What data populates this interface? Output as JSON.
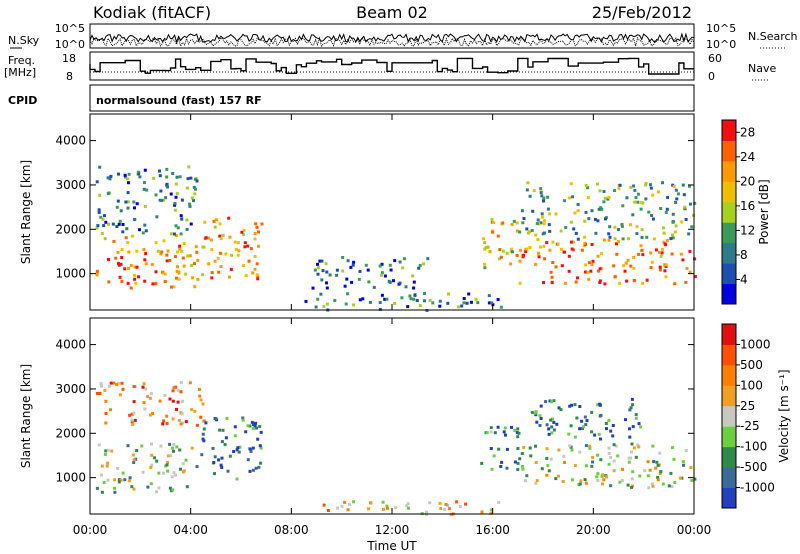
{
  "header": {
    "station": "Kodiak (fitACF)",
    "beam": "Beam 02",
    "date": "25/Feb/2012"
  },
  "panels_top": {
    "nsky_label": "N.Sky",
    "nsky_ticks": [
      "10^5",
      "10^0"
    ],
    "nsearch_label": "N.Search",
    "nsearch_ticks": [
      "10^5",
      "10^0"
    ],
    "freq_label": "Freq.",
    "freq_unit": "[MHz]",
    "freq_ticks": [
      "18",
      "8"
    ],
    "nave_label": "Nave",
    "nave_ticks": [
      "60",
      "0"
    ],
    "cpid_label": "CPID",
    "cpid_text": "normalsound (fast) 157 RF"
  },
  "chart_data": [
    {
      "type": "heatmap",
      "title": "Power",
      "xlabel": "Time UT",
      "ylabel": "Slant Range [km]",
      "xlim": [
        0,
        24
      ],
      "ylim": [
        180,
        4600
      ],
      "x_ticks": [
        "00:00",
        "04:00",
        "08:00",
        "12:00",
        "16:00",
        "20:00",
        "00:00"
      ],
      "y_ticks": [
        "1000",
        "2000",
        "3000",
        "4000"
      ],
      "colorbar": {
        "label": "Power [dB]",
        "ticks": [
          "4",
          "8",
          "12",
          "16",
          "20",
          "24",
          "28"
        ],
        "range": [
          0,
          30
        ],
        "colors": [
          "#0000e0",
          "#1e4fb0",
          "#2e7a8a",
          "#3a9a5a",
          "#a8d020",
          "#f0c000",
          "#ff9a00",
          "#ff6000",
          "#f01010"
        ]
      },
      "scatter_bands": [
        {
          "t0": 0.2,
          "t1": 4.2,
          "r0": 700,
          "r1": 1900,
          "level": 0.75
        },
        {
          "t0": 0.2,
          "t1": 4.2,
          "r0": 1900,
          "r1": 3500,
          "level": 0.3
        },
        {
          "t0": 4.2,
          "t1": 6.8,
          "r0": 900,
          "r1": 2300,
          "level": 0.7
        },
        {
          "t0": 8.8,
          "t1": 13.5,
          "r0": 700,
          "r1": 1400,
          "level": 0.25
        },
        {
          "t0": 8.5,
          "t1": 16.5,
          "r0": 200,
          "r1": 600,
          "level": 0.3
        },
        {
          "t0": 15.5,
          "t1": 17,
          "r0": 1100,
          "r1": 2300,
          "level": 0.65
        },
        {
          "t0": 17,
          "t1": 24,
          "r0": 800,
          "r1": 1800,
          "level": 0.8
        },
        {
          "t0": 17,
          "t1": 24,
          "r0": 1800,
          "r1": 3100,
          "level": 0.4
        }
      ]
    },
    {
      "type": "heatmap",
      "title": "Velocity",
      "xlabel": "Time UT",
      "ylabel": "Slant Range [km]",
      "xlim": [
        0,
        24
      ],
      "ylim": [
        180,
        4600
      ],
      "x_ticks": [
        "00:00",
        "04:00",
        "08:00",
        "12:00",
        "16:00",
        "20:00",
        "00:00"
      ],
      "y_ticks": [
        "1000",
        "2000",
        "3000",
        "4000"
      ],
      "colorbar": {
        "label": "Velocity [m s⁻¹]",
        "ticks": [
          "1000",
          "500",
          "100",
          "25",
          "-25",
          "-100",
          "-500",
          "-1000"
        ],
        "colors": [
          "#2040c0",
          "#3a6a9a",
          "#2e8a4a",
          "#6ad040",
          "#c8c8c0",
          "#f0a020",
          "#ff8000",
          "#ff5000",
          "#e01010"
        ]
      },
      "scatter_bands": [
        {
          "t0": 0.2,
          "t1": 4.2,
          "r0": 700,
          "r1": 1800,
          "level": 0.4
        },
        {
          "t0": 0.2,
          "t1": 4.5,
          "r0": 2200,
          "r1": 3200,
          "level": 0.7
        },
        {
          "t0": 4.2,
          "t1": 6.8,
          "r0": 1000,
          "r1": 2400,
          "level": 0.15
        },
        {
          "t0": 9,
          "t1": 16.5,
          "r0": 200,
          "r1": 500,
          "level": 0.6
        },
        {
          "t0": 15.5,
          "t1": 17,
          "r0": 1100,
          "r1": 2200,
          "level": 0.2
        },
        {
          "t0": 17,
          "t1": 24,
          "r0": 800,
          "r1": 1800,
          "level": 0.45
        },
        {
          "t0": 17.5,
          "t1": 22,
          "r0": 1900,
          "r1": 2800,
          "level": 0.15
        }
      ]
    }
  ]
}
